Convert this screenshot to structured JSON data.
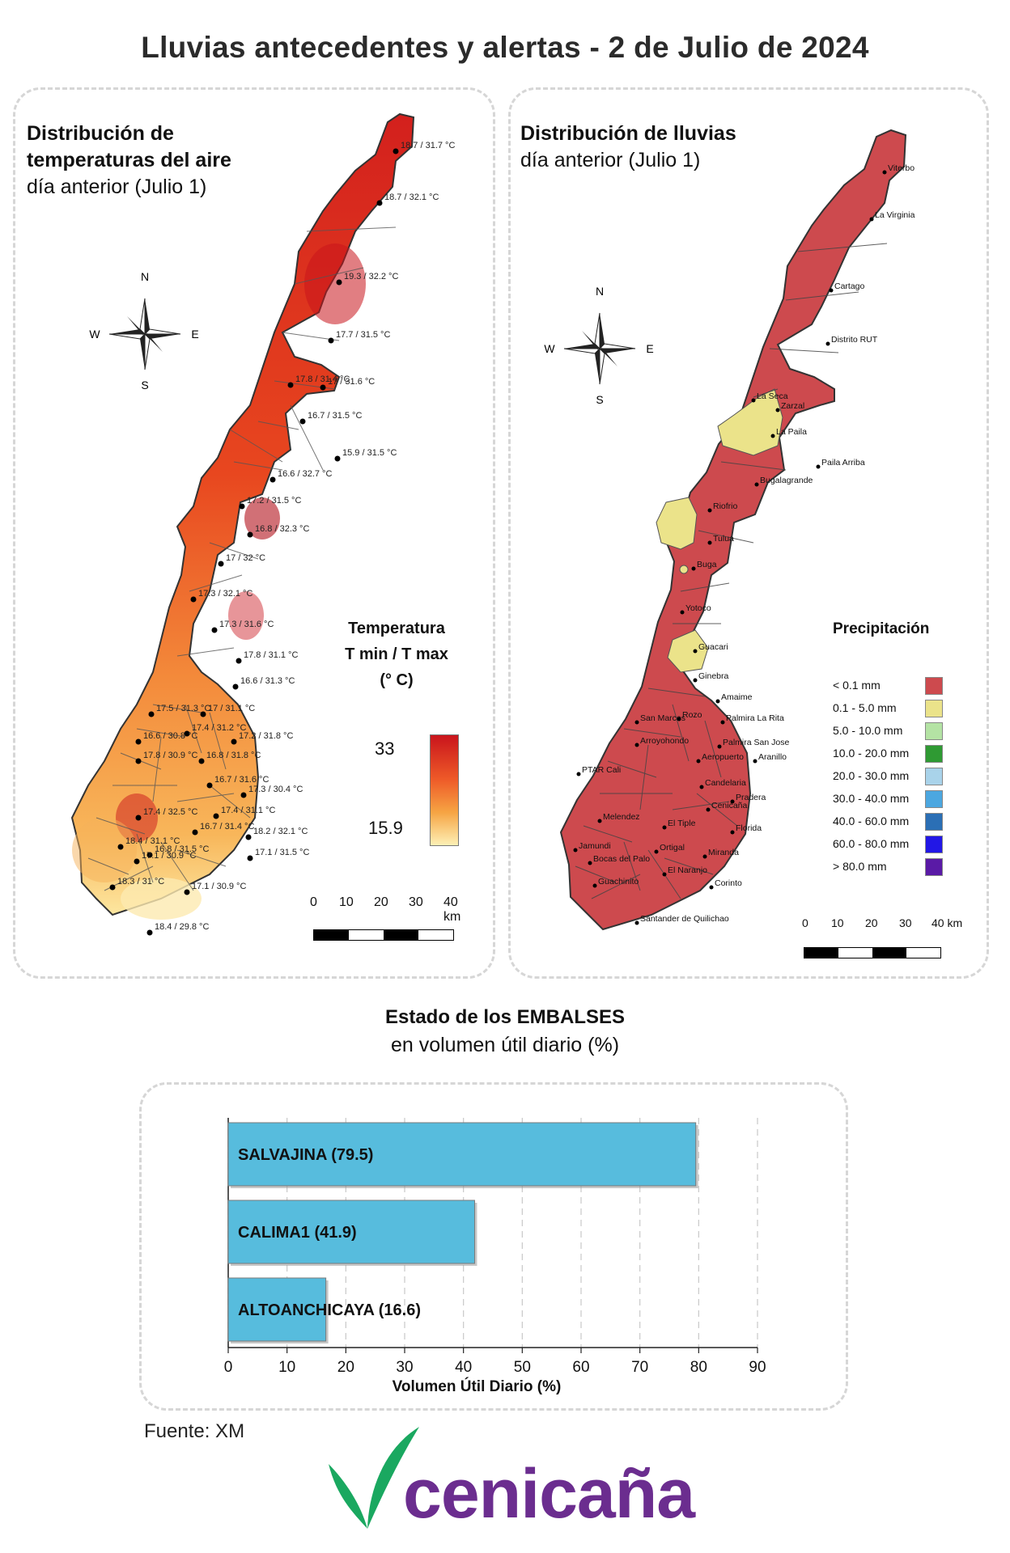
{
  "title": "Lluvias antecedentes y alertas - 2 de Julio de 2024",
  "temp_panel": {
    "title_bold_1": "Distribución de",
    "title_bold_2": "temperaturas del aire",
    "subtitle": "día anterior (Julio 1)",
    "legend_title_1": "Temperatura",
    "legend_title_2": "T min / T max",
    "legend_title_3": "(° C)",
    "legend_max": "33",
    "legend_min": "15.9",
    "colors": {
      "hot": "#c9141c",
      "mid": "#f0602a",
      "warm": "#f6a040",
      "cool": "#fce9a8"
    },
    "stations": [
      "18.7 / 31.7 °C",
      "18.7 / 32.1 °C",
      "19.3 / 32.2 °C",
      "17.7 / 31.5 °C",
      "17.8 / 31.4 °C",
      "17 / 31.6 °C",
      "16.7 / 31.5 °C",
      "15.9 / 31.5 °C",
      "16.6 / 32.7 °C",
      "17.2 / 31.5 °C",
      "16.8 / 32.3 °C",
      "17 / 32 °C",
      "17.3 / 32.1 °C",
      "17.3 / 31.6 °C",
      "17.8 / 31.1 °C",
      "16.6 / 31.3 °C",
      "17.5 / 31.3 °C",
      "17 / 31.1 °C",
      "17.4 / 31.2 °C",
      "16.6 / 30.8 °C",
      "17.2 / 31.8 °C",
      "17.8 / 30.9 °C",
      "16.8 / 31.8 °C",
      "16.7 / 31.6 °C",
      "17.3 / 30.4 °C",
      "17.4 / 32.5 °C",
      "17.4 / 31.1 °C",
      "16.7 / 31.4 °C",
      "18.2 / 32.1 °C",
      "18.4 / 31.1 °C",
      "16.8 / 31.5 °C",
      "17.1 / 31.5 °C",
      "17.1 / 30.9 °C",
      "17.1 / 30.9 °C",
      "18.3 / 31 °C",
      "18.4 / 29.8 °C"
    ]
  },
  "rain_panel": {
    "title_bold": "Distribución de lluvias",
    "subtitle": "día anterior (Julio 1)",
    "legend_title": "Precipitación",
    "legend": [
      {
        "label": "< 0.1 mm",
        "color": "#cd4a4e"
      },
      {
        "label": "0.1 - 5.0 mm",
        "color": "#ebe38a"
      },
      {
        "label": "5.0 - 10.0 mm",
        "color": "#b4e3a4"
      },
      {
        "label": "10.0 - 20.0 mm",
        "color": "#2f9a33"
      },
      {
        "label": "20.0 - 30.0 mm",
        "color": "#a9d3ea"
      },
      {
        "label": "30.0 - 40.0 mm",
        "color": "#4ca7e0"
      },
      {
        "label": "40.0 - 60.0 mm",
        "color": "#2b6fb5"
      },
      {
        "label": "60.0 - 80.0 mm",
        "color": "#2217e6"
      },
      {
        "label": "> 80.0 mm",
        "color": "#5a1aa6"
      }
    ],
    "places": [
      "Viterbo",
      "La Virginia",
      "Cartago",
      "Distrito RUT",
      "La Seca",
      "Zarzal",
      "La Paila",
      "Paila Arriba",
      "Bugalagrande",
      "Riofrio",
      "Tulua",
      "Buga",
      "Yotoco",
      "Guacari",
      "Ginebra",
      "Amaime",
      "San Marcos",
      "Rozo",
      "Palmira La Rita",
      "Arroyohondo",
      "Palmira San Jose",
      "Aeropuerto",
      "Aranillo",
      "PTAR Cali",
      "Candelaria",
      "Pradera",
      "Cenicaña",
      "Melendez",
      "El Tiple",
      "Florida",
      "Jamundi",
      "Bocas del Palo",
      "Ortigal",
      "Miranda",
      "El Naranjo",
      "Guachinito",
      "Corinto",
      "Santander de Quilichao"
    ]
  },
  "compass": {
    "n": "N",
    "s": "S",
    "e": "E",
    "w": "W"
  },
  "scalebar": {
    "ticks": [
      "0",
      "10",
      "20",
      "30",
      "40 km"
    ]
  },
  "reservoirs": {
    "heading_bold": "Estado de los EMBALSES",
    "heading_sub": "en volumen útil diario (%)",
    "chart_data": {
      "type": "bar",
      "orientation": "horizontal",
      "categories": [
        "SALVAJINA",
        "CALIMA1",
        "ALTOANCHICAYA"
      ],
      "bar_labels": [
        "SALVAJINA (79.5)",
        "CALIMA1 (41.9)",
        "ALTOANCHICAYA (16.6)"
      ],
      "values": [
        79.5,
        41.9,
        16.6
      ],
      "xlabel": "Volumen Útil Diario (%)",
      "xlim": [
        0,
        90
      ],
      "xticks": [
        "0",
        "10",
        "20",
        "30",
        "40",
        "50",
        "60",
        "70",
        "80",
        "90"
      ],
      "grid": true,
      "bar_color": "#57bcdd"
    }
  },
  "source": "Fuente: XM",
  "logo": {
    "text": "cenicaña",
    "leaf_color": "#1aa860",
    "text_color": "#6b2d8f"
  }
}
